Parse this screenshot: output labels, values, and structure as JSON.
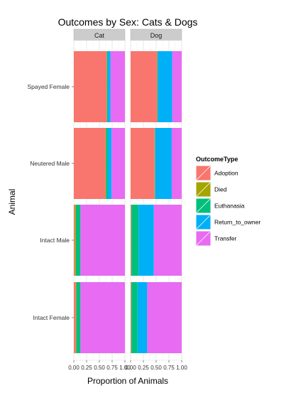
{
  "chart_data": {
    "type": "bar",
    "orientation": "horizontal",
    "stacked": true,
    "title": "Outcomes by Sex: Cats & Dogs",
    "xlabel": "Proportion of Animals",
    "ylabel": "Animal",
    "xlim": [
      0,
      1
    ],
    "x_ticks": [
      "0.00",
      "0.25",
      "0.50",
      "0.75",
      "1.00"
    ],
    "grid": true,
    "facets": [
      "Cat",
      "Dog"
    ],
    "categories": [
      "Spayed Female",
      "Neutered Male",
      "Intact Male",
      "Intact Female"
    ],
    "legend": {
      "title": "OutcomeType",
      "position": "right"
    },
    "series": [
      {
        "name": "Adoption",
        "color": "#F8766D",
        "values": {
          "Cat": [
            0.64,
            0.62,
            0.02,
            0.04
          ],
          "Dog": [
            0.52,
            0.47,
            0.01,
            0.01
          ]
        }
      },
      {
        "name": "Died",
        "color": "#A3A500",
        "values": {
          "Cat": [
            0.01,
            0.01,
            0.02,
            0.01
          ],
          "Dog": [
            0.005,
            0.005,
            0.005,
            0.005
          ]
        }
      },
      {
        "name": "Euthanasia",
        "color": "#00BF7D",
        "values": {
          "Cat": [
            0.01,
            0.03,
            0.09,
            0.08
          ],
          "Dog": [
            0.01,
            0.01,
            0.14,
            0.12
          ]
        }
      },
      {
        "name": "Return_to_owner",
        "color": "#00B0F6",
        "values": {
          "Cat": [
            0.06,
            0.08,
            0.0,
            0.0
          ],
          "Dog": [
            0.28,
            0.32,
            0.3,
            0.19
          ]
        }
      },
      {
        "name": "Transfer",
        "color": "#E76BF3",
        "values": {
          "Cat": [
            0.28,
            0.26,
            0.87,
            0.87
          ],
          "Dog": [
            0.185,
            0.195,
            0.545,
            0.675
          ]
        }
      }
    ]
  }
}
